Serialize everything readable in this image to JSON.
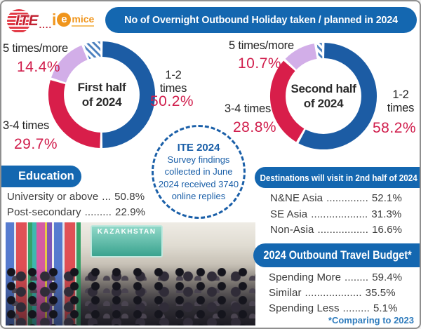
{
  "colors": {
    "primary_blue": "#1467b0",
    "donut_blue": "#1c5ca4",
    "donut_red": "#d81e4a",
    "donut_lavender": "#d2aee8",
    "hatch_blue": "#4a7fbe",
    "percent_red": "#d01c4b",
    "note_blue": "#1a5fa8",
    "text_dark": "#2b2b2b"
  },
  "logos": {
    "ite": "ITE",
    "ite_dots": "....",
    "iemice_i": "i",
    "iemice_e": "e",
    "iemice_mice": "mice"
  },
  "header": {
    "title": "No of Overnight Outbound Holiday taken / planned in 2024"
  },
  "chart_data": [
    {
      "type": "pie",
      "subtype": "donut",
      "title": "First half of 2024",
      "center": [
        "First half",
        "of 2024"
      ],
      "segments": [
        {
          "label": "1-2 times",
          "value": 50.2,
          "pct": "50.2%",
          "color": "#1c5ca4"
        },
        {
          "label": "3-4 times",
          "value": 29.7,
          "pct": "29.7%",
          "color": "#d81e4a"
        },
        {
          "label": "5 times/more",
          "value": 14.4,
          "pct": "14.4%",
          "color": "#d2aee8"
        },
        {
          "label": "",
          "value": 5.7,
          "pct": "",
          "color": "hatch"
        }
      ]
    },
    {
      "type": "pie",
      "subtype": "donut",
      "title": "Second half of 2024",
      "center": [
        "Second half",
        "of 2024"
      ],
      "segments": [
        {
          "label": "1-2 times",
          "value": 58.2,
          "pct": "58.2%",
          "color": "#1c5ca4"
        },
        {
          "label": "3-4 times",
          "value": 28.8,
          "pct": "28.8%",
          "color": "#d81e4a"
        },
        {
          "label": "5 times/more",
          "value": 10.7,
          "pct": "10.7%",
          "color": "#d2aee8"
        },
        {
          "label": "",
          "value": 2.3,
          "pct": "",
          "color": "hatch"
        }
      ]
    }
  ],
  "survey_circle": {
    "title": "ITE 2024",
    "lines": [
      "Survey findings",
      "collected in June",
      "2024 received 3740",
      "online replies"
    ]
  },
  "education": {
    "header": "Education",
    "items": [
      {
        "label": "University or above",
        "leader": "...",
        "value": "50.8%"
      },
      {
        "label": "Post-secondary",
        "leader": ".........",
        "value": "22.9%"
      }
    ]
  },
  "destinations": {
    "header": "Destinations will visit in 2nd half of 2024",
    "items": [
      {
        "label": "N&NE Asia",
        "leader": "..............",
        "value": "52.1%"
      },
      {
        "label": "SE Asia",
        "leader": "...................",
        "value": "31.3%"
      },
      {
        "label": "Non-Asia",
        "leader": ".................",
        "value": "16.6%"
      }
    ]
  },
  "budget": {
    "header": "2024 Outbound Travel Budget*",
    "items": [
      {
        "label": "Spending More",
        "leader": "........",
        "value": "59.4%"
      },
      {
        "label": "Similar",
        "leader": "...................",
        "value": "35.5%"
      },
      {
        "label": "Spending Less",
        "leader": ".........",
        "value": "5.1%"
      }
    ],
    "footnote": "*Comparing to 2023"
  },
  "photo": {
    "sign": "KAZAKHSTAN"
  }
}
